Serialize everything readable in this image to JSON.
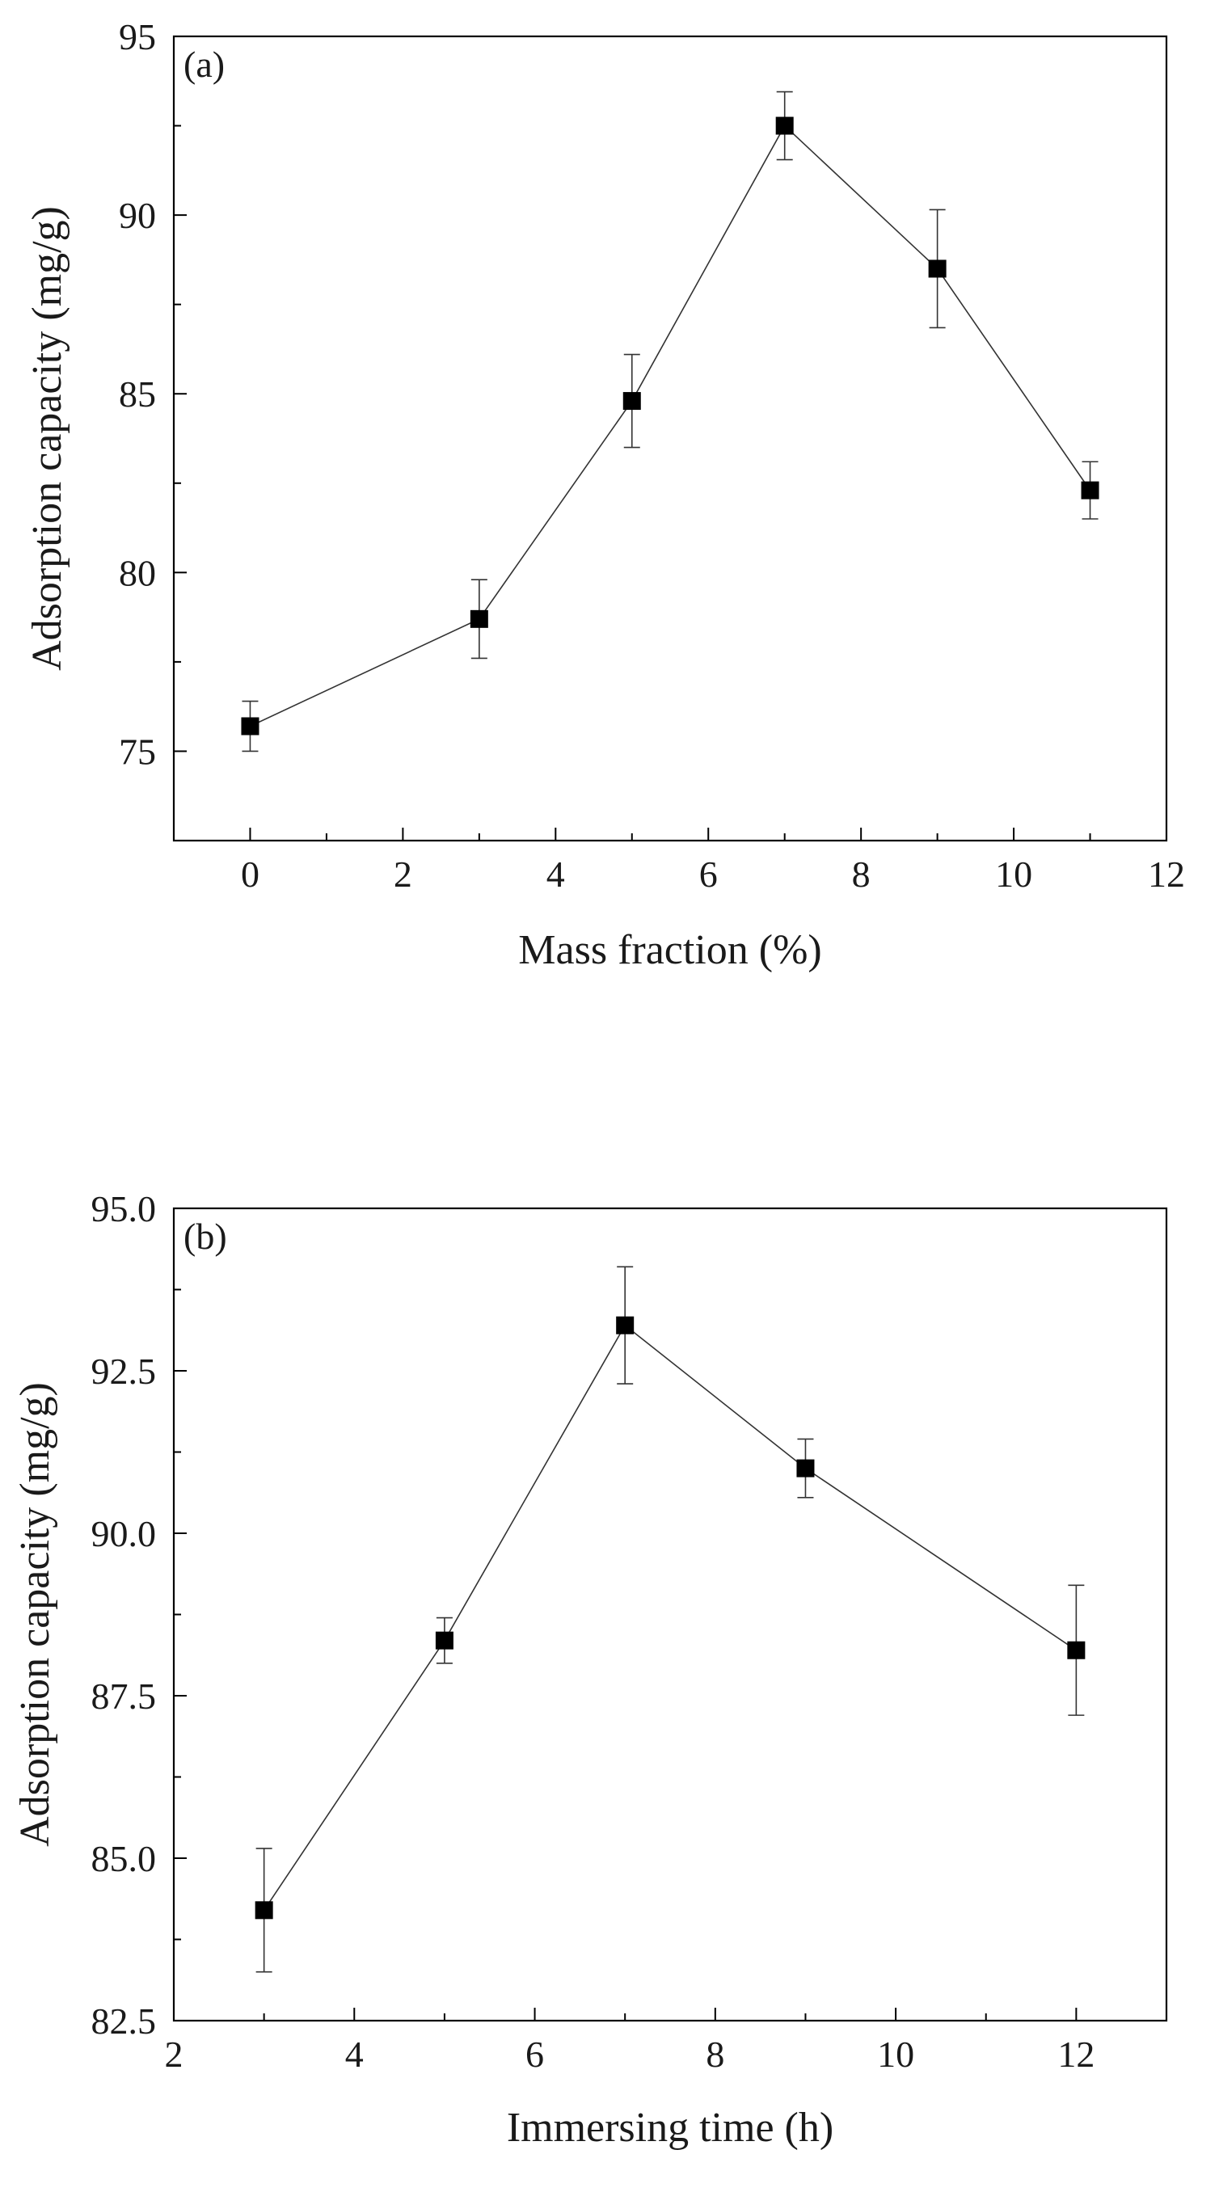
{
  "chart_data": [
    {
      "type": "line",
      "panel_label": "(a)",
      "xlabel": "Mass fraction (%)",
      "ylabel": "Adsorption capacity (mg/g)",
      "xlim": [
        -1,
        12
      ],
      "ylim": [
        72.5,
        95
      ],
      "xticks": [
        0,
        2,
        4,
        6,
        8,
        10,
        12
      ],
      "yticks": [
        75,
        80,
        85,
        90,
        95
      ],
      "ytick_decimals": 0,
      "grid": false,
      "series": [
        {
          "x": [
            0,
            3,
            5,
            7,
            9,
            11
          ],
          "y": [
            75.7,
            78.7,
            84.8,
            92.5,
            88.5,
            82.3
          ],
          "error": [
            0.7,
            1.1,
            1.3,
            0.95,
            1.65,
            0.8
          ],
          "color": "#000000",
          "marker": "square"
        }
      ]
    },
    {
      "type": "line",
      "panel_label": "(b)",
      "xlabel": "Immersing time (h)",
      "ylabel": "Adsorption capacity (mg/g)",
      "xlim": [
        2,
        13
      ],
      "ylim": [
        82.5,
        95
      ],
      "xticks": [
        2,
        4,
        6,
        8,
        10,
        12
      ],
      "yticks": [
        82.5,
        85.0,
        87.5,
        90.0,
        92.5,
        95.0
      ],
      "ytick_decimals": 1,
      "grid": false,
      "series": [
        {
          "x": [
            3,
            5,
            7,
            9,
            12
          ],
          "y": [
            84.2,
            88.35,
            93.2,
            91.0,
            88.2
          ],
          "error": [
            0.95,
            0.35,
            0.9,
            0.45,
            1.0
          ],
          "color": "#000000",
          "marker": "square"
        }
      ]
    }
  ]
}
